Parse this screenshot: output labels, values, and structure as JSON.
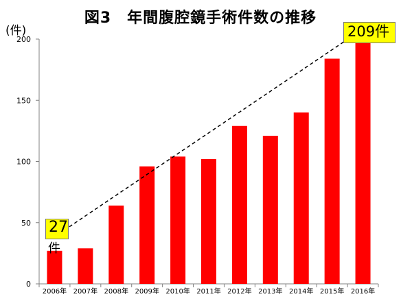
{
  "title": "図3　年間腹腔鏡手術件数の推移",
  "unit_label": "(件)",
  "callouts": {
    "start_value": "27",
    "start_unit": "件",
    "end_text": "209件"
  },
  "colors": {
    "bar": "#ff0000",
    "callout_fill": "#ffff00",
    "trend_line": "#000000",
    "axis": "#808080"
  },
  "chart_data": {
    "type": "bar",
    "title": "図3　年間腹腔鏡手術件数の推移",
    "ylabel": "(件)",
    "xlabel": "",
    "categories": [
      "2006年",
      "2007年",
      "2008年",
      "2009年",
      "2010年",
      "2011年",
      "2012年",
      "2013年",
      "2014年",
      "2015年",
      "2016年"
    ],
    "values": [
      27,
      29,
      64,
      96,
      104,
      102,
      129,
      121,
      140,
      184,
      209
    ],
    "ylim": [
      0,
      200
    ],
    "yticks": [
      0,
      50,
      100,
      150,
      200
    ],
    "grid": false,
    "legend": "none",
    "trend_arrow": {
      "from_category": "2006年",
      "to_category": "2016年",
      "style": "dashed"
    }
  }
}
